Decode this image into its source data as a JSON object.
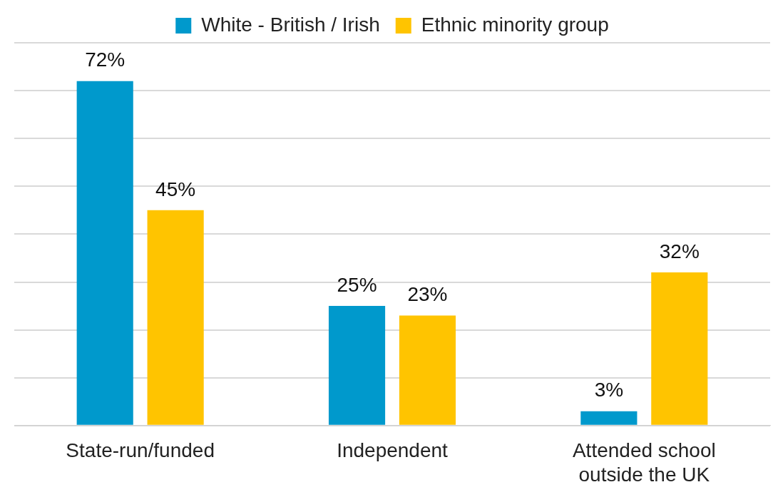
{
  "chart_data": {
    "type": "bar",
    "categories": [
      "State-run/funded",
      "Independent",
      "Attended school outside the UK"
    ],
    "series": [
      {
        "name": "White - British / Irish",
        "color": "#0099cc",
        "values": [
          72,
          25,
          3
        ],
        "value_labels": [
          "72%",
          "25%",
          "3%"
        ]
      },
      {
        "name": "Ethnic minority group",
        "color": "#ffc400",
        "values": [
          45,
          23,
          32
        ],
        "value_labels": [
          "45%",
          "23%",
          "32%"
        ]
      }
    ],
    "ylim": [
      0,
      80
    ],
    "yticks": [
      {
        "value": 0,
        "label": null
      },
      {
        "value": 10,
        "label": null
      },
      {
        "value": 20,
        "label": null
      },
      {
        "value": 30,
        "label": null
      },
      {
        "value": 40,
        "label": null
      },
      {
        "value": 50,
        "label": null
      },
      {
        "value": 60,
        "label": null
      },
      {
        "value": 70,
        "label": null
      },
      {
        "value": 80,
        "label": null
      }
    ],
    "grid": "y",
    "legend": "top",
    "tick_labels": "x"
  }
}
